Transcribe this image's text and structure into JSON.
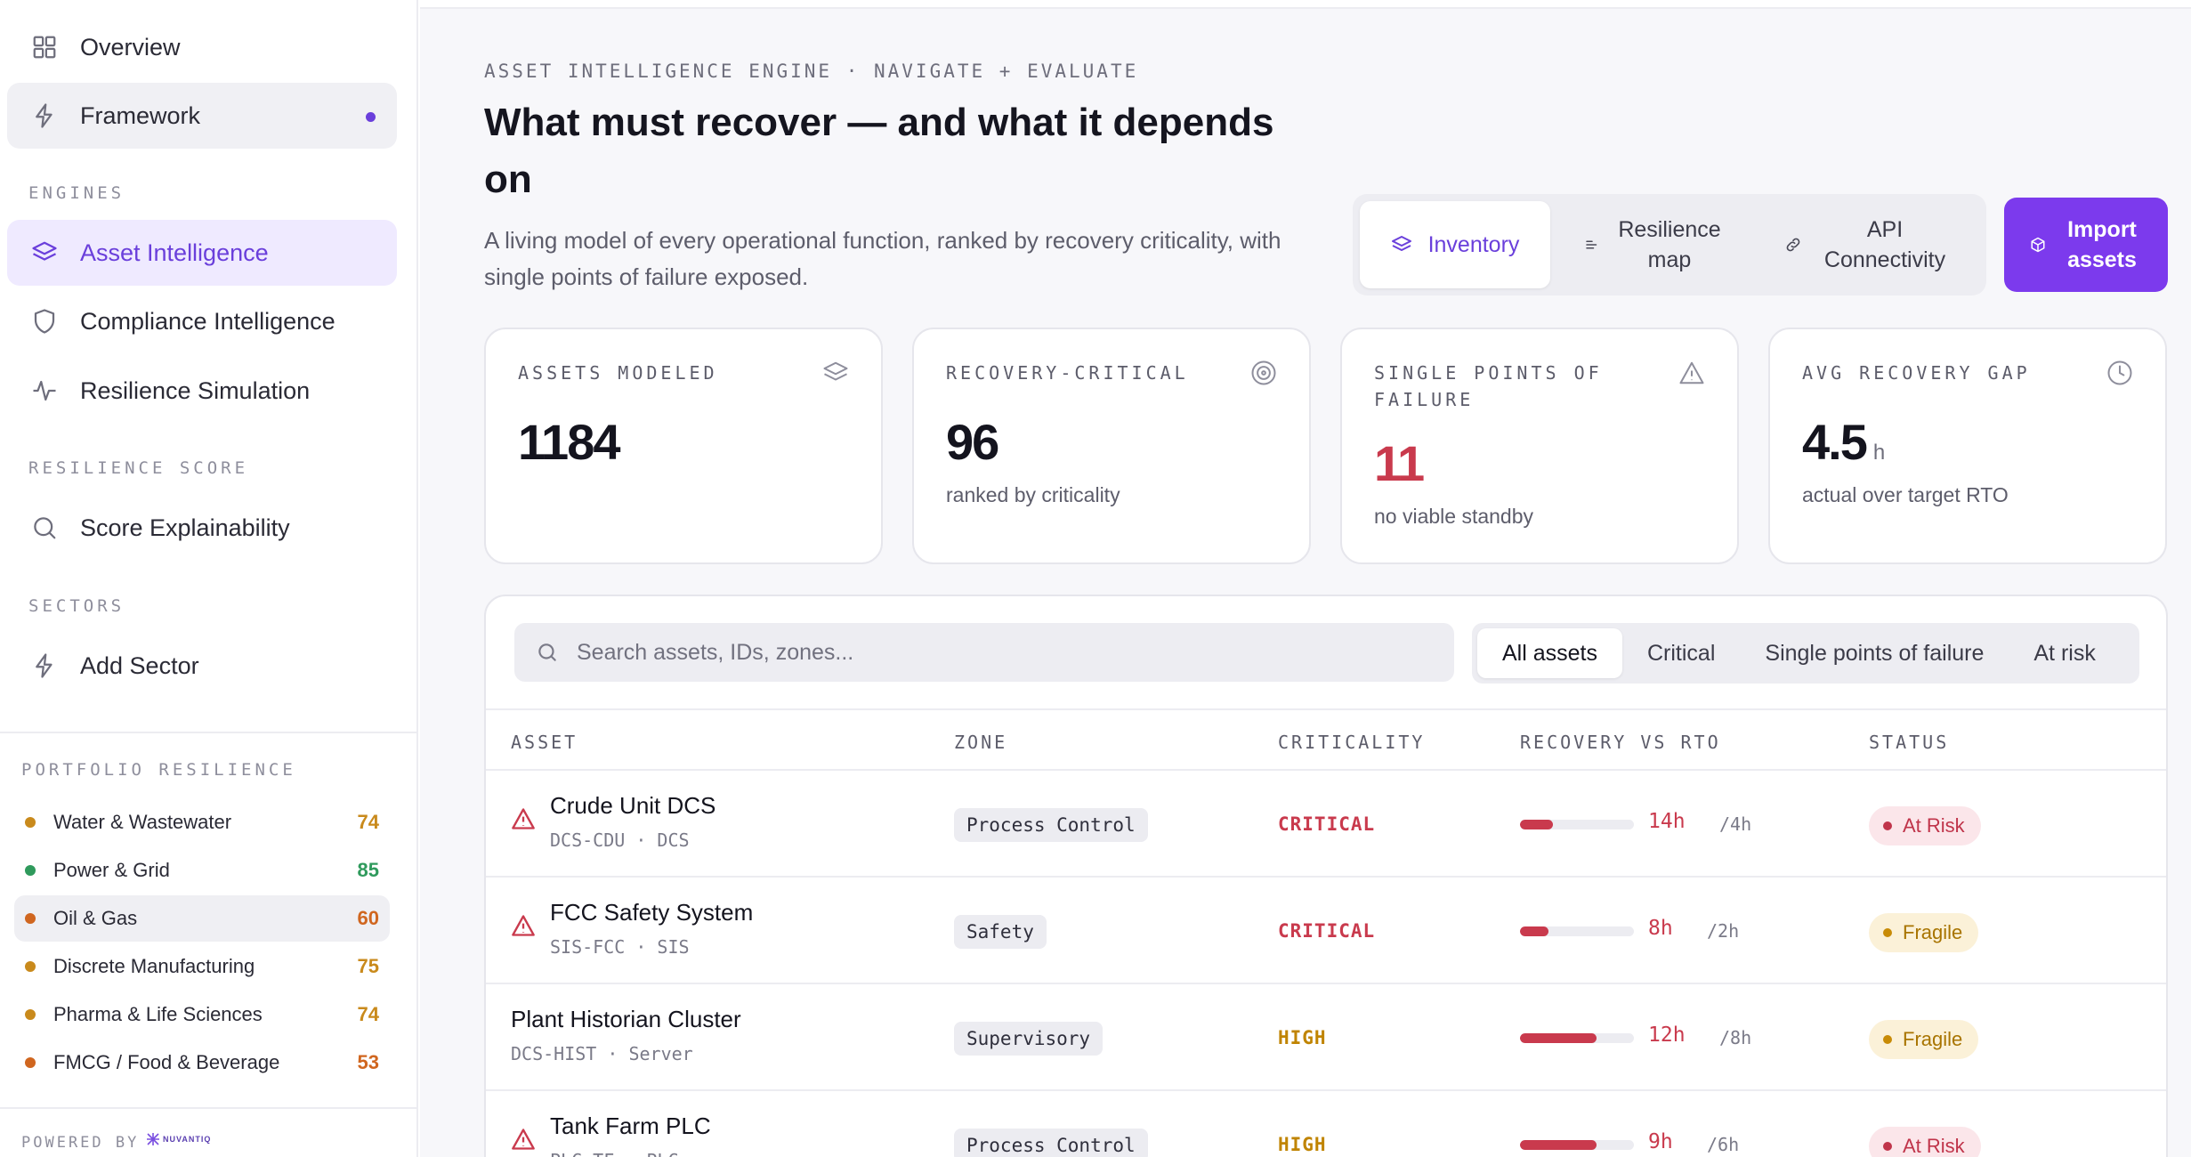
{
  "sidebar": {
    "nav_top": [
      {
        "label": "Overview",
        "icon": "grid-icon"
      },
      {
        "label": "Framework",
        "icon": "lightning-icon"
      }
    ],
    "engines_label": "ENGINES",
    "engines": [
      {
        "label": "Asset Intelligence",
        "icon": "layers-icon"
      },
      {
        "label": "Compliance Intelligence",
        "icon": "shield-icon"
      },
      {
        "label": "Resilience Simulation",
        "icon": "pulse-icon"
      }
    ],
    "resilience_label": "RESILIENCE SCORE",
    "resilience": [
      {
        "label": "Score Explainability",
        "icon": "search-icon"
      }
    ],
    "sectors_label": "SECTORS",
    "sectors": [
      {
        "label": "Add Sector",
        "icon": "lightning-icon"
      }
    ],
    "portfolio_label": "PORTFOLIO RESILIENCE",
    "portfolio": [
      {
        "name": "Water & Wastewater",
        "score": "74",
        "color": "#c98a1c"
      },
      {
        "name": "Power & Grid",
        "score": "85",
        "color": "#2f9a5c"
      },
      {
        "name": "Oil & Gas",
        "score": "60",
        "color": "#d0661f"
      },
      {
        "name": "Discrete Manufacturing",
        "score": "75",
        "color": "#c98a1c"
      },
      {
        "name": "Pharma & Life Sciences",
        "score": "74",
        "color": "#c98a1c"
      },
      {
        "name": "FMCG / Food & Beverage",
        "score": "53",
        "color": "#d0661f"
      }
    ],
    "powered_by": "POWERED BY",
    "powered_logo": "NUVANTIQ"
  },
  "header": {
    "eyebrow": "ASSET INTELLIGENCE ENGINE · NAVIGATE + EVALUATE",
    "title": "What must recover — and what it depends on",
    "subtitle": "A living model of every operational function, ranked by recovery criticality, with single points of failure exposed.",
    "view_tabs": [
      {
        "label": "Inventory",
        "icon": "layers-icon"
      },
      {
        "label": "Resilience map",
        "icon": "map-lines-icon"
      },
      {
        "label": "API Connectivity",
        "icon": "link-icon"
      }
    ],
    "import_button": "Import assets"
  },
  "kpis": [
    {
      "label": "ASSETS MODELED",
      "value": "1184",
      "unit": "",
      "note": "",
      "icon": "layers-icon"
    },
    {
      "label": "RECOVERY-CRITICAL",
      "value": "96",
      "unit": "",
      "note": "ranked by criticality",
      "icon": "target-icon"
    },
    {
      "label": "SINGLE POINTS OF FAILURE",
      "value": "11",
      "unit": "",
      "note": "no viable standby",
      "icon": "warning-icon"
    },
    {
      "label": "AVG RECOVERY GAP",
      "value": "4.5",
      "unit": "h",
      "note": "actual over target RTO",
      "icon": "clock-icon"
    }
  ],
  "table": {
    "search_placeholder": "Search assets, IDs, zones...",
    "filters": [
      "All assets",
      "Critical",
      "Single points of failure",
      "At risk"
    ],
    "columns": [
      "ASSET",
      "ZONE",
      "CRITICALITY",
      "RECOVERY VS RTO",
      "STATUS"
    ],
    "rows": [
      {
        "warn": true,
        "name": "Crude Unit DCS",
        "id": "DCS-CDU",
        "type": "DCS",
        "zone": "Process Control",
        "criticality": "CRITICAL",
        "crit_color": "#c93a4d",
        "recovery": "14h",
        "rto": "/4h",
        "bar_fill": 0.29,
        "status": "At Risk",
        "status_kind": "risk"
      },
      {
        "warn": true,
        "name": "FCC Safety System",
        "id": "SIS-FCC",
        "type": "SIS",
        "zone": "Safety",
        "criticality": "CRITICAL",
        "crit_color": "#c93a4d",
        "recovery": "8h",
        "rto": "/2h",
        "bar_fill": 0.25,
        "status": "Fragile",
        "status_kind": "fragile"
      },
      {
        "warn": false,
        "name": "Plant Historian Cluster",
        "id": "DCS-HIST",
        "type": "Server",
        "zone": "Supervisory",
        "criticality": "HIGH",
        "crit_color": "#c08400",
        "recovery": "12h",
        "rto": "/8h",
        "bar_fill": 0.67,
        "status": "Fragile",
        "status_kind": "fragile"
      },
      {
        "warn": true,
        "name": "Tank Farm PLC",
        "id": "PLC-TF",
        "type": "PLC",
        "zone": "Process Control",
        "criticality": "HIGH",
        "crit_color": "#c08400",
        "recovery": "9h",
        "rto": "/6h",
        "bar_fill": 0.67,
        "status": "At Risk",
        "status_kind": "risk"
      }
    ]
  }
}
